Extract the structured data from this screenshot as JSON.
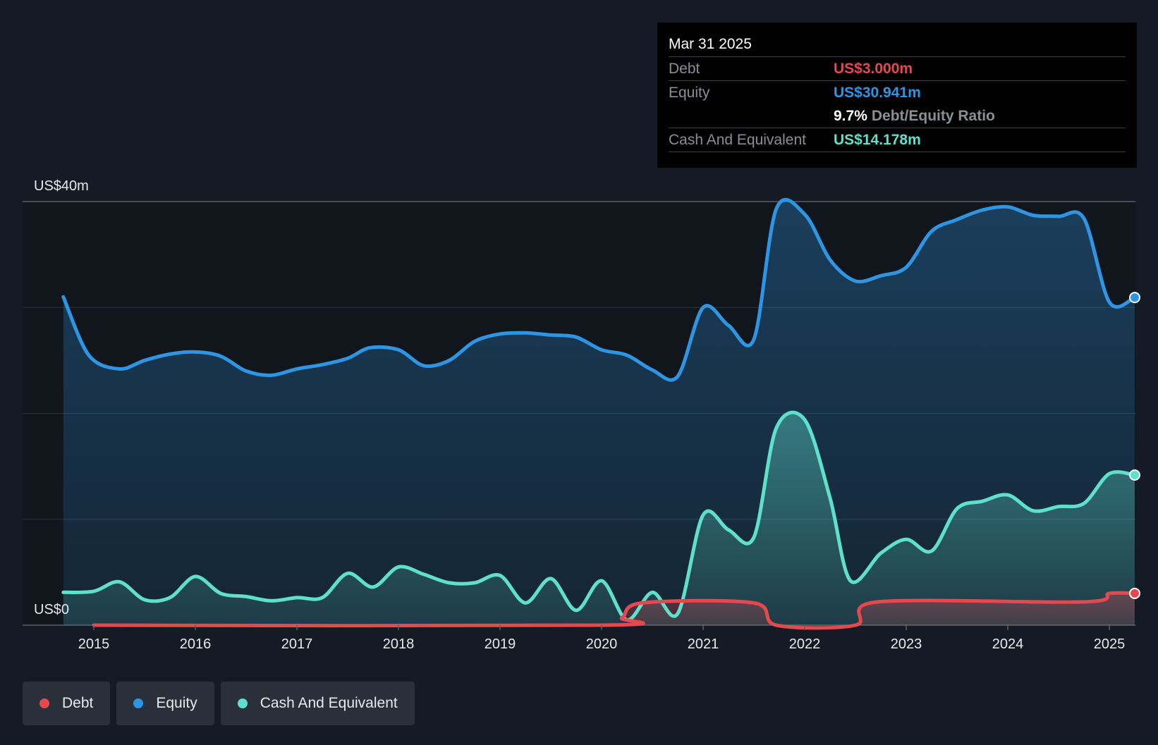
{
  "chart_data": {
    "type": "area",
    "y_axis": {
      "min": 0,
      "max": 40,
      "unit": "US$m",
      "top_label": "US$40m",
      "bottom_label": "US$0"
    },
    "x_axis": {
      "ticks": [
        "2015",
        "2016",
        "2017",
        "2018",
        "2019",
        "2020",
        "2021",
        "2022",
        "2023",
        "2024",
        "2025"
      ]
    },
    "series": [
      {
        "name": "Equity",
        "color": "#2d96e4",
        "points": [
          [
            2014.7,
            31.0
          ],
          [
            2014.95,
            25.5
          ],
          [
            2015.25,
            24.2
          ],
          [
            2015.5,
            25.0
          ],
          [
            2015.75,
            25.6
          ],
          [
            2016.0,
            25.8
          ],
          [
            2016.25,
            25.4
          ],
          [
            2016.5,
            24.0
          ],
          [
            2016.75,
            23.6
          ],
          [
            2017.0,
            24.2
          ],
          [
            2017.25,
            24.6
          ],
          [
            2017.5,
            25.2
          ],
          [
            2017.72,
            26.2
          ],
          [
            2018.0,
            26.0
          ],
          [
            2018.25,
            24.5
          ],
          [
            2018.5,
            25.0
          ],
          [
            2018.75,
            26.8
          ],
          [
            2019.0,
            27.5
          ],
          [
            2019.25,
            27.6
          ],
          [
            2019.5,
            27.4
          ],
          [
            2019.75,
            27.2
          ],
          [
            2020.0,
            26.0
          ],
          [
            2020.25,
            25.5
          ],
          [
            2020.5,
            24.1
          ],
          [
            2020.75,
            23.5
          ],
          [
            2021.0,
            30.0
          ],
          [
            2021.25,
            28.3
          ],
          [
            2021.5,
            27.0
          ],
          [
            2021.72,
            39.3
          ],
          [
            2022.0,
            38.8
          ],
          [
            2022.25,
            34.5
          ],
          [
            2022.5,
            32.5
          ],
          [
            2022.75,
            33.0
          ],
          [
            2023.0,
            33.8
          ],
          [
            2023.25,
            37.2
          ],
          [
            2023.5,
            38.3
          ],
          [
            2023.75,
            39.2
          ],
          [
            2024.0,
            39.5
          ],
          [
            2024.25,
            38.7
          ],
          [
            2024.5,
            38.6
          ],
          [
            2024.75,
            38.4
          ],
          [
            2025.0,
            30.5
          ],
          [
            2025.25,
            30.941
          ]
        ]
      },
      {
        "name": "Cash And Equivalent",
        "color": "#5ee0cc",
        "points": [
          [
            2014.7,
            3.1
          ],
          [
            2015.0,
            3.2
          ],
          [
            2015.25,
            4.1
          ],
          [
            2015.5,
            2.4
          ],
          [
            2015.75,
            2.6
          ],
          [
            2016.0,
            4.6
          ],
          [
            2016.25,
            3.0
          ],
          [
            2016.5,
            2.7
          ],
          [
            2016.75,
            2.3
          ],
          [
            2017.0,
            2.6
          ],
          [
            2017.25,
            2.6
          ],
          [
            2017.5,
            4.9
          ],
          [
            2017.75,
            3.6
          ],
          [
            2018.0,
            5.5
          ],
          [
            2018.25,
            4.8
          ],
          [
            2018.5,
            4.0
          ],
          [
            2018.75,
            4.0
          ],
          [
            2019.0,
            4.7
          ],
          [
            2019.25,
            2.1
          ],
          [
            2019.5,
            4.4
          ],
          [
            2019.75,
            1.4
          ],
          [
            2020.0,
            4.2
          ],
          [
            2020.25,
            0.5
          ],
          [
            2020.5,
            3.1
          ],
          [
            2020.75,
            1.1
          ],
          [
            2021.0,
            10.4
          ],
          [
            2021.25,
            9.0
          ],
          [
            2021.5,
            8.3
          ],
          [
            2021.72,
            18.6
          ],
          [
            2022.0,
            19.4
          ],
          [
            2022.25,
            12.0
          ],
          [
            2022.45,
            4.2
          ],
          [
            2022.75,
            6.8
          ],
          [
            2023.0,
            8.1
          ],
          [
            2023.25,
            7.0
          ],
          [
            2023.5,
            11.0
          ],
          [
            2023.75,
            11.7
          ],
          [
            2024.0,
            12.3
          ],
          [
            2024.25,
            10.8
          ],
          [
            2024.5,
            11.2
          ],
          [
            2024.75,
            11.5
          ],
          [
            2025.0,
            14.3
          ],
          [
            2025.25,
            14.178
          ]
        ]
      },
      {
        "name": "Debt",
        "color": "#e5484d",
        "points": [
          [
            2015.0,
            0
          ],
          [
            2020.0,
            0
          ],
          [
            2020.2,
            0.7
          ],
          [
            2020.4,
            2.1
          ],
          [
            2021.5,
            2.1
          ],
          [
            2021.72,
            0
          ],
          [
            2022.5,
            0
          ],
          [
            2022.72,
            2.2
          ],
          [
            2024.75,
            2.2
          ],
          [
            2025.0,
            3.0
          ],
          [
            2025.25,
            3.0
          ]
        ]
      }
    ]
  },
  "tooltip": {
    "date": "Mar 31 2025",
    "debt_label": "Debt",
    "debt_value": "US$3.000m",
    "equity_label": "Equity",
    "equity_value": "US$30.941m",
    "ratio_value": "9.7%",
    "ratio_label": "Debt/Equity Ratio",
    "cash_label": "Cash And Equivalent",
    "cash_value": "US$14.178m"
  },
  "legend": [
    {
      "label": "Debt",
      "color": "#e5484d"
    },
    {
      "label": "Equity",
      "color": "#2d96e4"
    },
    {
      "label": "Cash And Equivalent",
      "color": "#5ee0cc"
    }
  ]
}
